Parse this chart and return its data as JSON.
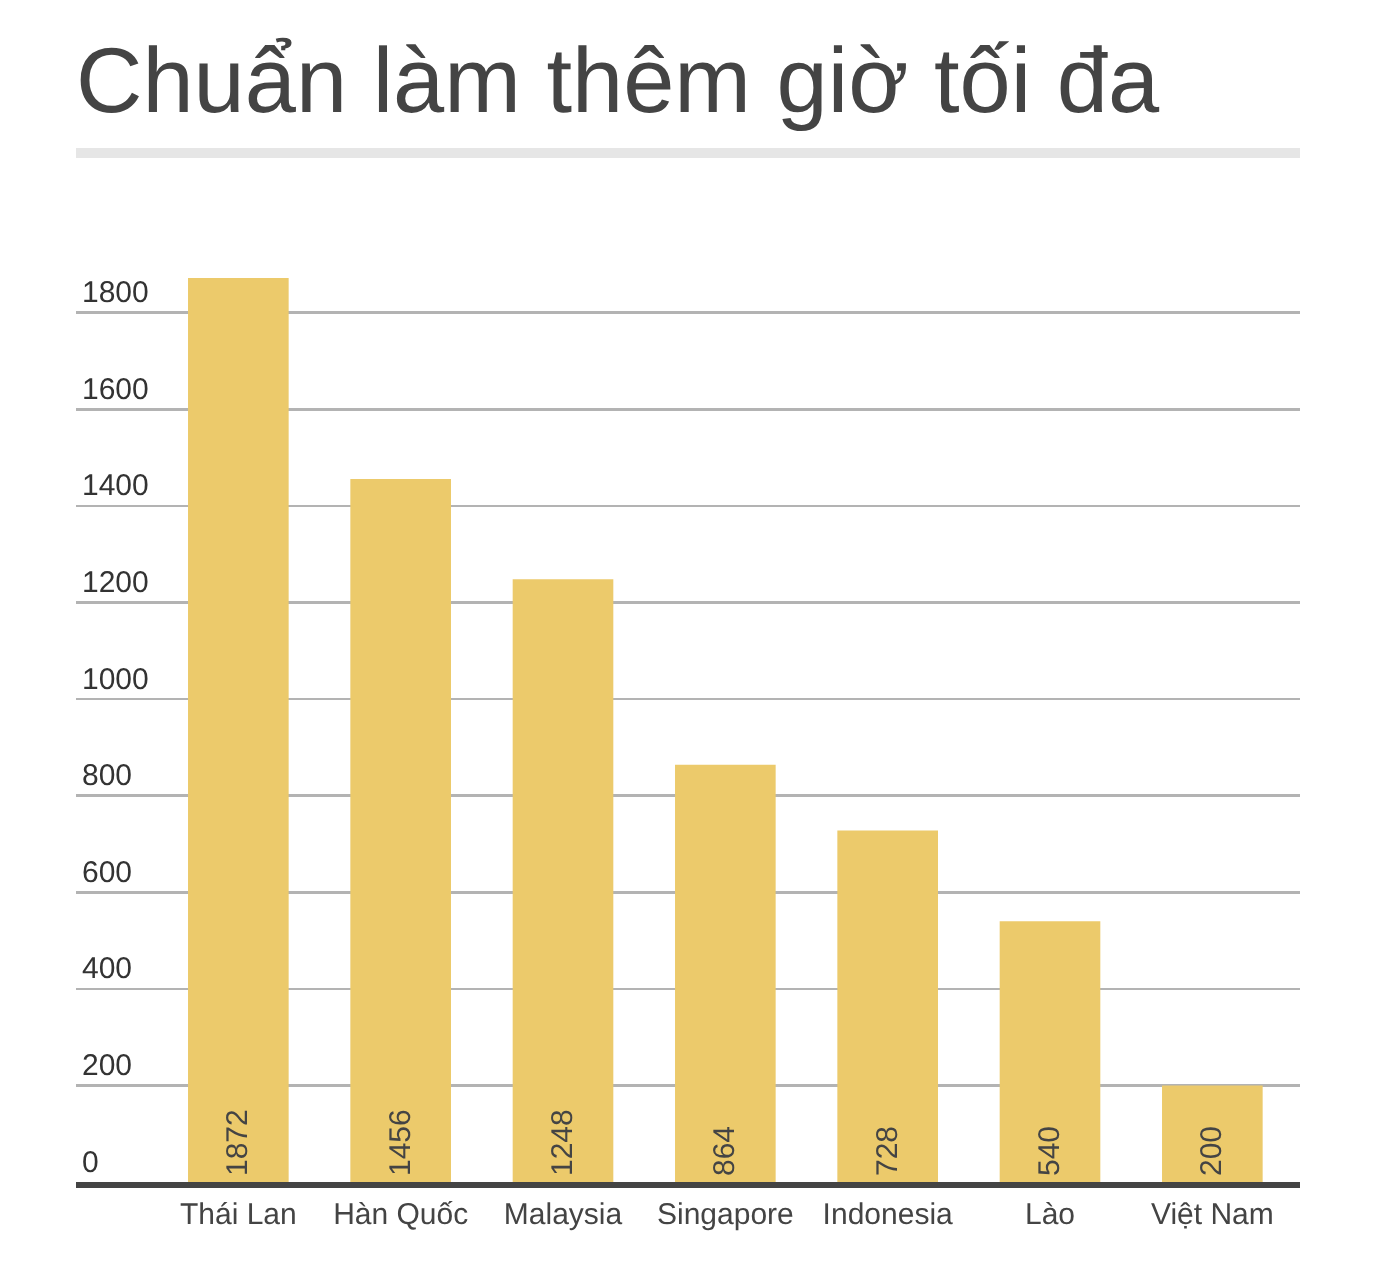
{
  "chart_data": {
    "type": "bar",
    "title": "Chuẩn làm thêm giờ tối đa",
    "categories": [
      "Thái Lan",
      "Hàn Quốc",
      "Malaysia",
      "Singapore",
      "Indonesia",
      "Lào",
      "Việt Nam"
    ],
    "values": [
      1872,
      1456,
      1248,
      864,
      728,
      540,
      200
    ],
    "color": "#ecca6b",
    "ylim": [
      0,
      1872
    ],
    "yticks": [
      0,
      200,
      400,
      600,
      800,
      1000,
      1200,
      1400,
      1600,
      1800
    ],
    "grid": "y",
    "data_labels": true
  }
}
